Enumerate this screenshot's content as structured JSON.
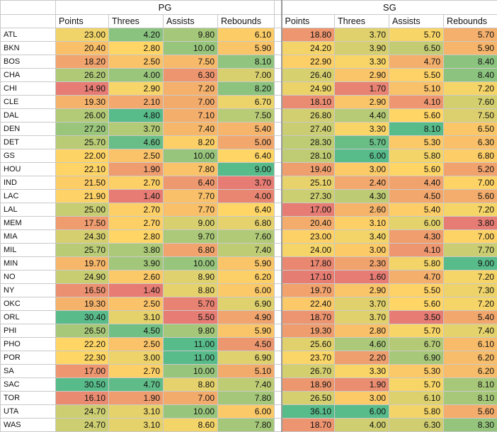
{
  "groups": [
    "PG",
    "SG"
  ],
  "stat_headers": [
    "Points",
    "Threes",
    "Assists",
    "Rebounds"
  ],
  "colors": {
    "low": "#e67c73",
    "mid": "#ffd666",
    "high": "#57bb8a"
  },
  "rows": [
    {
      "team": "ATL",
      "pg": [
        "23.00",
        "4.20",
        "9.80",
        "6.10"
      ],
      "sg": [
        "18.80",
        "3.70",
        "5.70",
        "5.70"
      ]
    },
    {
      "team": "BKN",
      "pg": [
        "20.40",
        "2.80",
        "10.00",
        "5.90"
      ],
      "sg": [
        "24.20",
        "3.90",
        "6.50",
        "5.90"
      ]
    },
    {
      "team": "BOS",
      "pg": [
        "18.20",
        "2.50",
        "7.50",
        "8.10"
      ],
      "sg": [
        "22.90",
        "3.30",
        "4.70",
        "8.40"
      ]
    },
    {
      "team": "CHA",
      "pg": [
        "26.20",
        "4.00",
        "6.30",
        "7.00"
      ],
      "sg": [
        "26.40",
        "2.90",
        "5.50",
        "8.40"
      ]
    },
    {
      "team": "CHI",
      "pg": [
        "14.90",
        "2.90",
        "7.20",
        "8.20"
      ],
      "sg": [
        "24.90",
        "1.70",
        "5.10",
        "7.20"
      ]
    },
    {
      "team": "CLE",
      "pg": [
        "19.30",
        "2.10",
        "7.00",
        "6.70"
      ],
      "sg": [
        "18.10",
        "2.90",
        "4.10",
        "7.60"
      ]
    },
    {
      "team": "DAL",
      "pg": [
        "26.00",
        "4.80",
        "7.10",
        "7.50"
      ],
      "sg": [
        "26.80",
        "4.40",
        "5.60",
        "7.50"
      ]
    },
    {
      "team": "DEN",
      "pg": [
        "27.20",
        "3.70",
        "7.40",
        "5.40"
      ],
      "sg": [
        "27.40",
        "3.30",
        "8.10",
        "6.50"
      ]
    },
    {
      "team": "DET",
      "pg": [
        "25.70",
        "4.60",
        "8.20",
        "5.00"
      ],
      "sg": [
        "28.30",
        "5.70",
        "5.30",
        "6.30"
      ]
    },
    {
      "team": "GS",
      "pg": [
        "22.00",
        "2.50",
        "10.00",
        "6.40"
      ],
      "sg": [
        "28.10",
        "6.00",
        "5.80",
        "6.80"
      ]
    },
    {
      "team": "HOU",
      "pg": [
        "22.10",
        "1.90",
        "7.80",
        "9.00"
      ],
      "sg": [
        "19.40",
        "3.00",
        "5.60",
        "5.20"
      ]
    },
    {
      "team": "IND",
      "pg": [
        "21.50",
        "2.70",
        "6.40",
        "3.70"
      ],
      "sg": [
        "25.10",
        "2.40",
        "4.40",
        "7.00"
      ]
    },
    {
      "team": "LAC",
      "pg": [
        "21.90",
        "1.40",
        "7.70",
        "4.00"
      ],
      "sg": [
        "27.30",
        "4.30",
        "4.50",
        "5.60"
      ]
    },
    {
      "team": "LAL",
      "pg": [
        "25.00",
        "2.70",
        "7.70",
        "6.40"
      ],
      "sg": [
        "17.00",
        "2.60",
        "5.40",
        "7.20"
      ]
    },
    {
      "team": "MEM",
      "pg": [
        "17.50",
        "2.70",
        "9.00",
        "6.80"
      ],
      "sg": [
        "20.40",
        "3.10",
        "6.00",
        "3.80"
      ]
    },
    {
      "team": "MIA",
      "pg": [
        "24.30",
        "2.80",
        "9.70",
        "7.60"
      ],
      "sg": [
        "23.00",
        "3.40",
        "4.30",
        "7.00"
      ]
    },
    {
      "team": "MIL",
      "pg": [
        "25.70",
        "3.80",
        "6.80",
        "7.40"
      ],
      "sg": [
        "24.00",
        "3.00",
        "4.10",
        "7.70"
      ]
    },
    {
      "team": "MIN",
      "pg": [
        "19.70",
        "3.90",
        "10.00",
        "5.90"
      ],
      "sg": [
        "17.80",
        "2.30",
        "5.80",
        "9.00"
      ]
    },
    {
      "team": "NO",
      "pg": [
        "24.90",
        "2.60",
        "8.90",
        "6.20"
      ],
      "sg": [
        "17.10",
        "1.60",
        "4.70",
        "7.20"
      ]
    },
    {
      "team": "NY",
      "pg": [
        "16.50",
        "1.40",
        "8.80",
        "6.00"
      ],
      "sg": [
        "19.70",
        "2.90",
        "5.50",
        "7.30"
      ]
    },
    {
      "team": "OKC",
      "pg": [
        "19.30",
        "2.50",
        "5.70",
        "6.90"
      ],
      "sg": [
        "22.40",
        "3.70",
        "5.60",
        "7.20"
      ]
    },
    {
      "team": "ORL",
      "pg": [
        "30.40",
        "3.10",
        "5.50",
        "4.90"
      ],
      "sg": [
        "18.70",
        "3.70",
        "3.50",
        "5.40"
      ]
    },
    {
      "team": "PHI",
      "pg": [
        "26.50",
        "4.50",
        "9.80",
        "5.90"
      ],
      "sg": [
        "19.30",
        "2.80",
        "5.70",
        "7.40"
      ]
    },
    {
      "team": "PHO",
      "pg": [
        "22.20",
        "2.50",
        "11.00",
        "4.50"
      ],
      "sg": [
        "25.60",
        "4.60",
        "6.70",
        "6.10"
      ]
    },
    {
      "team": "POR",
      "pg": [
        "22.30",
        "3.00",
        "11.00",
        "6.90"
      ],
      "sg": [
        "23.70",
        "2.20",
        "6.90",
        "6.20"
      ]
    },
    {
      "team": "SA",
      "pg": [
        "17.00",
        "2.70",
        "10.00",
        "5.10"
      ],
      "sg": [
        "26.70",
        "3.30",
        "5.30",
        "6.20"
      ]
    },
    {
      "team": "SAC",
      "pg": [
        "30.50",
        "4.70",
        "8.80",
        "7.40"
      ],
      "sg": [
        "18.90",
        "1.90",
        "5.70",
        "8.10"
      ]
    },
    {
      "team": "TOR",
      "pg": [
        "16.10",
        "1.90",
        "7.00",
        "7.80"
      ],
      "sg": [
        "26.50",
        "3.00",
        "6.10",
        "8.10"
      ]
    },
    {
      "team": "UTA",
      "pg": [
        "24.70",
        "3.10",
        "10.00",
        "6.00"
      ],
      "sg": [
        "36.10",
        "6.00",
        "5.80",
        "5.60"
      ]
    },
    {
      "team": "WAS",
      "pg": [
        "24.70",
        "3.10",
        "8.60",
        "7.80"
      ],
      "sg": [
        "18.70",
        "4.00",
        "6.30",
        "8.30"
      ]
    }
  ]
}
